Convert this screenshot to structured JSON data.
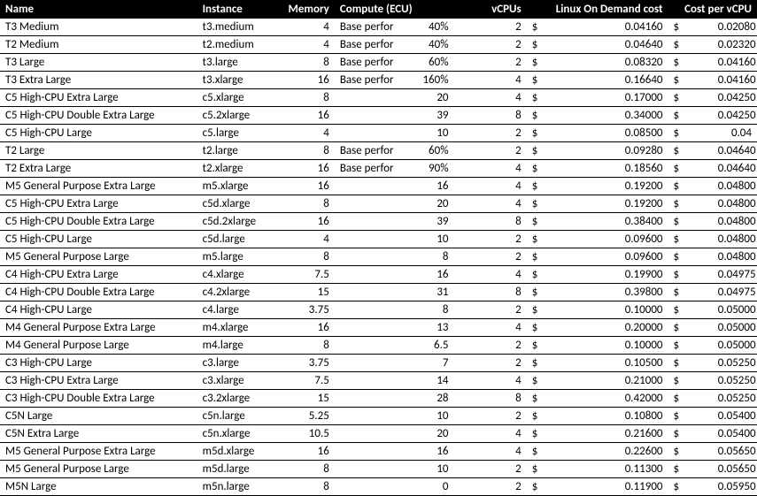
{
  "headers": {
    "name": "Name",
    "instance": "Instance",
    "memory": "Memory",
    "compute": "Compute (ECU)",
    "vcpus": "vCPUs",
    "linux_cost": "Linux On Demand cost",
    "cost_per_vcpu": "Cost per vCPU"
  },
  "currency": "$",
  "rows": [
    {
      "name": "T3 Medium",
      "instance": "t3.medium",
      "memory": "4",
      "compute_label": "Base performance:",
      "ecu": "40%",
      "vcpus": "2",
      "cost": "0.04160",
      "cpv": "0.02080"
    },
    {
      "name": "T2 Medium",
      "instance": "t2.medium",
      "memory": "4",
      "compute_label": "Base performance:",
      "ecu": "40%",
      "vcpus": "2",
      "cost": "0.04640",
      "cpv": "0.02320"
    },
    {
      "name": "T3 Large",
      "instance": "t3.large",
      "memory": "8",
      "compute_label": "Base performance:",
      "ecu": "60%",
      "vcpus": "2",
      "cost": "0.08320",
      "cpv": "0.04160"
    },
    {
      "name": "T3 Extra Large",
      "instance": "t3.xlarge",
      "memory": "16",
      "compute_label": "Base performance:",
      "ecu": "160%",
      "vcpus": "4",
      "cost": "0.16640",
      "cpv": "0.04160"
    },
    {
      "name": "C5 High-CPU Extra Large",
      "instance": "c5.xlarge",
      "memory": "8",
      "compute_label": "",
      "ecu": "20",
      "vcpus": "4",
      "cost": "0.17000",
      "cpv": "0.04250"
    },
    {
      "name": "C5 High-CPU Double Extra Large",
      "instance": "c5.2xlarge",
      "memory": "16",
      "compute_label": "",
      "ecu": "39",
      "vcpus": "8",
      "cost": "0.34000",
      "cpv": "0.04250"
    },
    {
      "name": "C5 High-CPU Large",
      "instance": "c5.large",
      "memory": "4",
      "compute_label": "",
      "ecu": "10",
      "vcpus": "2",
      "cost": "0.08500",
      "cpv": "0.04"
    },
    {
      "name": "T2 Large",
      "instance": "t2.large",
      "memory": "8",
      "compute_label": "Base performance:",
      "ecu": "60%",
      "vcpus": "2",
      "cost": "0.09280",
      "cpv": "0.04640"
    },
    {
      "name": "T2 Extra Large",
      "instance": "t2.xlarge",
      "memory": "16",
      "compute_label": "Base performance:",
      "ecu": "90%",
      "vcpus": "4",
      "cost": "0.18560",
      "cpv": "0.04640"
    },
    {
      "name": "M5 General Purpose Extra Large",
      "instance": "m5.xlarge",
      "memory": "16",
      "compute_label": "",
      "ecu": "16",
      "vcpus": "4",
      "cost": "0.19200",
      "cpv": "0.04800"
    },
    {
      "name": "C5 High-CPU Extra Large",
      "instance": "c5d.xlarge",
      "memory": "8",
      "compute_label": "",
      "ecu": "20",
      "vcpus": "4",
      "cost": "0.19200",
      "cpv": "0.04800"
    },
    {
      "name": "C5 High-CPU Double Extra Large",
      "instance": "c5d.2xlarge",
      "memory": "16",
      "compute_label": "",
      "ecu": "39",
      "vcpus": "8",
      "cost": "0.38400",
      "cpv": "0.04800"
    },
    {
      "name": "C5 High-CPU Large",
      "instance": "c5d.large",
      "memory": "4",
      "compute_label": "",
      "ecu": "10",
      "vcpus": "2",
      "cost": "0.09600",
      "cpv": "0.04800"
    },
    {
      "name": "M5 General Purpose Large",
      "instance": "m5.large",
      "memory": "8",
      "compute_label": "",
      "ecu": "8",
      "vcpus": "2",
      "cost": "0.09600",
      "cpv": "0.04800"
    },
    {
      "name": "C4 High-CPU Extra Large",
      "instance": "c4.xlarge",
      "memory": "7.5",
      "compute_label": "",
      "ecu": "16",
      "vcpus": "4",
      "cost": "0.19900",
      "cpv": "0.04975"
    },
    {
      "name": "C4 High-CPU Double Extra Large",
      "instance": "c4.2xlarge",
      "memory": "15",
      "compute_label": "",
      "ecu": "31",
      "vcpus": "8",
      "cost": "0.39800",
      "cpv": "0.04975"
    },
    {
      "name": "C4 High-CPU Large",
      "instance": "c4.large",
      "memory": "3.75",
      "compute_label": "",
      "ecu": "8",
      "vcpus": "2",
      "cost": "0.10000",
      "cpv": "0.05000"
    },
    {
      "name": "M4 General Purpose Extra Large",
      "instance": "m4.xlarge",
      "memory": "16",
      "compute_label": "",
      "ecu": "13",
      "vcpus": "4",
      "cost": "0.20000",
      "cpv": "0.05000"
    },
    {
      "name": "M4 General Purpose Large",
      "instance": "m4.large",
      "memory": "8",
      "compute_label": "",
      "ecu": "6.5",
      "vcpus": "2",
      "cost": "0.10000",
      "cpv": "0.05000"
    },
    {
      "name": "C3 High-CPU Large",
      "instance": "c3.large",
      "memory": "3.75",
      "compute_label": "",
      "ecu": "7",
      "vcpus": "2",
      "cost": "0.10500",
      "cpv": "0.05250"
    },
    {
      "name": "C3 High-CPU Extra Large",
      "instance": "c3.xlarge",
      "memory": "7.5",
      "compute_label": "",
      "ecu": "14",
      "vcpus": "4",
      "cost": "0.21000",
      "cpv": "0.05250"
    },
    {
      "name": "C3 High-CPU Double Extra Large",
      "instance": "c3.2xlarge",
      "memory": "15",
      "compute_label": "",
      "ecu": "28",
      "vcpus": "8",
      "cost": "0.42000",
      "cpv": "0.05250"
    },
    {
      "name": "C5N Large",
      "instance": "c5n.large",
      "memory": "5.25",
      "compute_label": "",
      "ecu": "10",
      "vcpus": "2",
      "cost": "0.10800",
      "cpv": "0.05400"
    },
    {
      "name": "C5N Extra Large",
      "instance": "c5n.xlarge",
      "memory": "10.5",
      "compute_label": "",
      "ecu": "20",
      "vcpus": "4",
      "cost": "0.21600",
      "cpv": "0.05400"
    },
    {
      "name": "M5 General Purpose Extra Large",
      "instance": "m5d.xlarge",
      "memory": "16",
      "compute_label": "",
      "ecu": "16",
      "vcpus": "4",
      "cost": "0.22600",
      "cpv": "0.05650"
    },
    {
      "name": "M5 General Purpose Large",
      "instance": "m5d.large",
      "memory": "8",
      "compute_label": "",
      "ecu": "10",
      "vcpus": "2",
      "cost": "0.11300",
      "cpv": "0.05650"
    },
    {
      "name": "M5N Large",
      "instance": "m5n.large",
      "memory": "8",
      "compute_label": "",
      "ecu": "0",
      "vcpus": "2",
      "cost": "0.11900",
      "cpv": "0.05950"
    }
  ]
}
